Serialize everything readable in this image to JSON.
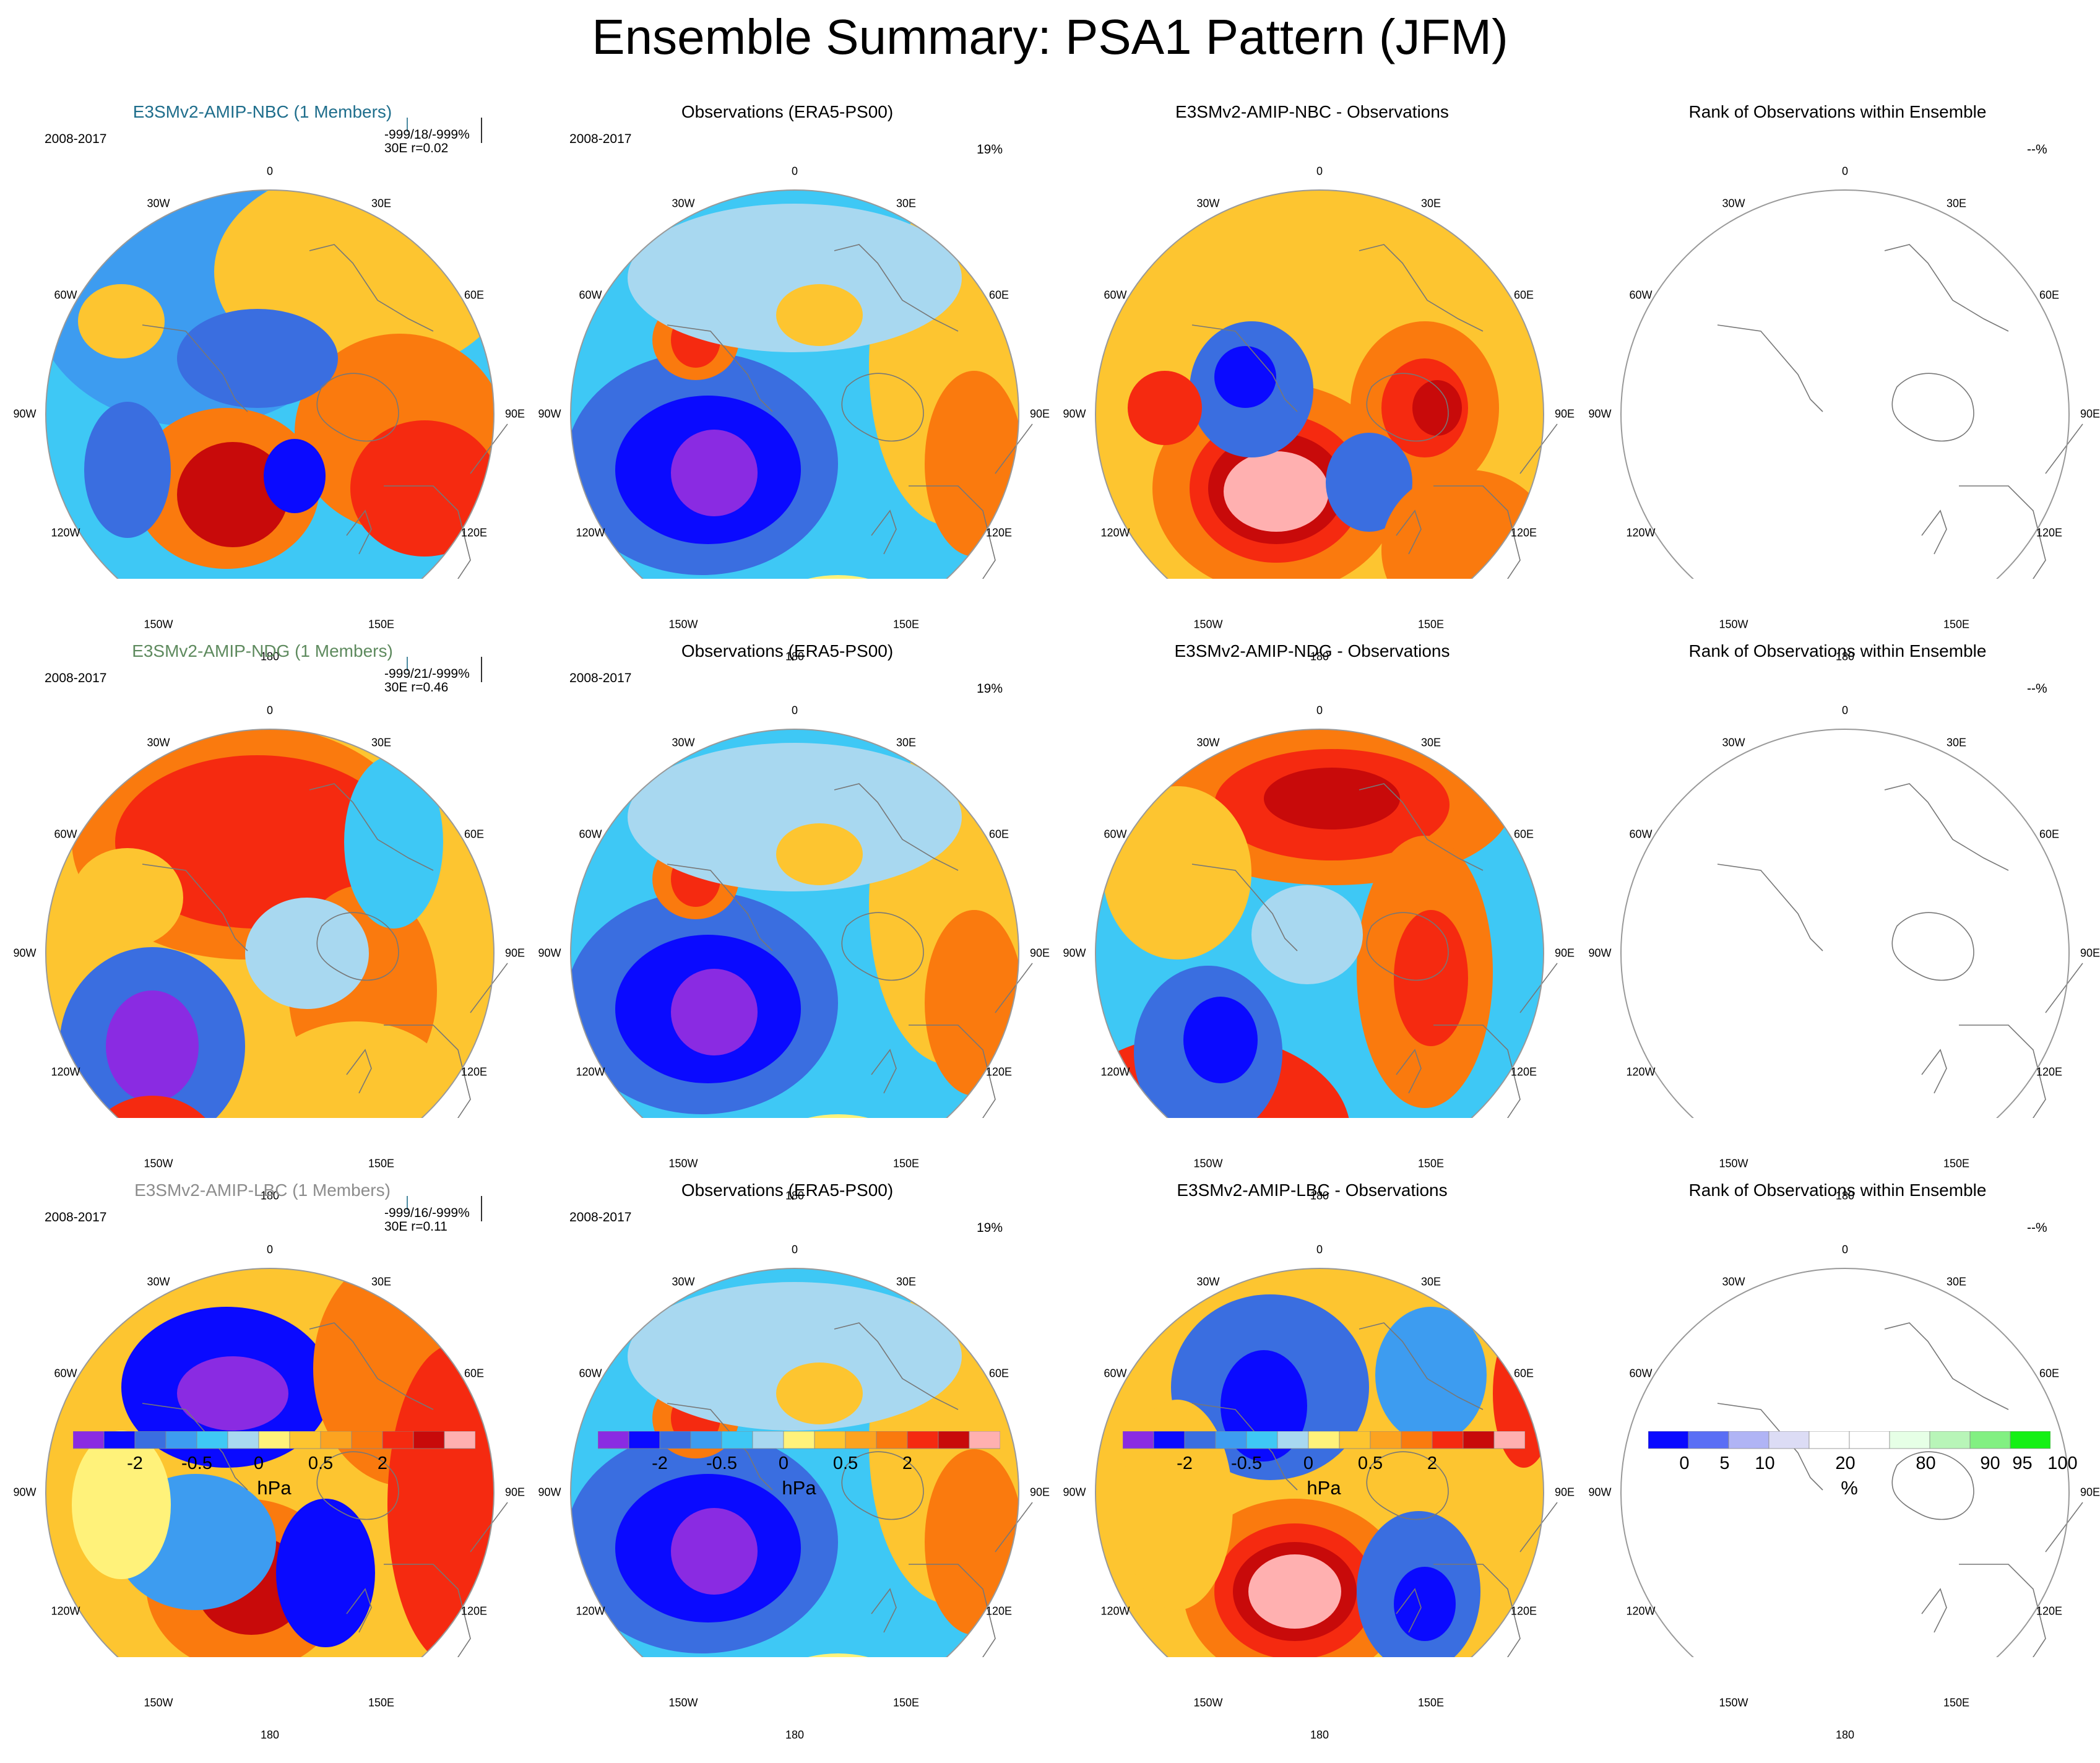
{
  "title": "Ensemble Summary: PSA1 Pattern (JFM)",
  "longitude_labels": [
    "0",
    "30E",
    "60E",
    "90E",
    "120E",
    "150E",
    "180",
    "150W",
    "120W",
    "90W",
    "60W",
    "30W"
  ],
  "chart_data": {
    "type": "map-panels",
    "rows": [
      {
        "model": {
          "title": "E3SMv2-AMIP-NBC (1 Members)",
          "title_color": "#1f6e8c",
          "period": "2008-2017",
          "stats_line1": "-999/18/-999%",
          "stats_line2": "30E r=0.02"
        },
        "observations": {
          "title": "Observations (ERA5-PS00)",
          "period": "2008-2017",
          "percent": "19%"
        },
        "difference": {
          "title": "E3SMv2-AMIP-NBC - Observations"
        },
        "rank": {
          "title": "Rank of Observations within Ensemble",
          "percent": "--%"
        }
      },
      {
        "model": {
          "title": "E3SMv2-AMIP-NDG (1 Members)",
          "title_color": "#5e8a5e",
          "period": "2008-2017",
          "stats_line1": "-999/21/-999%",
          "stats_line2": "30E r=0.46"
        },
        "observations": {
          "title": "Observations (ERA5-PS00)",
          "period": "2008-2017",
          "percent": "19%"
        },
        "difference": {
          "title": "E3SMv2-AMIP-NDG - Observations"
        },
        "rank": {
          "title": "Rank of Observations within Ensemble",
          "percent": "--%"
        }
      },
      {
        "model": {
          "title": "E3SMv2-AMIP-LBC (1 Members)",
          "title_color": "#8c8c8c",
          "period": "2008-2017",
          "stats_line1": "-999/16/-999%",
          "stats_line2": "30E r=0.11"
        },
        "observations": {
          "title": "Observations (ERA5-PS00)",
          "period": "2008-2017",
          "percent": "19%"
        },
        "difference": {
          "title": "E3SMv2-AMIP-LBC - Observations"
        },
        "rank": {
          "title": "Rank of Observations within Ensemble",
          "percent": "--%"
        }
      }
    ],
    "colorbar_hpa": {
      "colors": [
        "#8a2be2",
        "#0a0aff",
        "#3a6ee0",
        "#3d9cf0",
        "#3ec8f5",
        "#a8d8f0",
        "#fff27a",
        "#fdc530",
        "#fca320",
        "#fa7a0e",
        "#f52a10",
        "#c80a0a",
        "#ffb0b0"
      ],
      "tick_labels": [
        "-2",
        "-0.5",
        "0",
        "0.5",
        "2"
      ],
      "units": "hPa"
    },
    "colorbar_rank": {
      "colors": [
        "#0a0aff",
        "#5a6ef5",
        "#b0b4f5",
        "#dcdcf5",
        "#ffffff",
        "#ffffff",
        "#e6ffe6",
        "#b8f5b8",
        "#82f082",
        "#14f014"
      ],
      "tick_labels": [
        "0",
        "5",
        "10",
        "20",
        "80",
        "90",
        "95",
        "100"
      ],
      "units": "%"
    }
  }
}
